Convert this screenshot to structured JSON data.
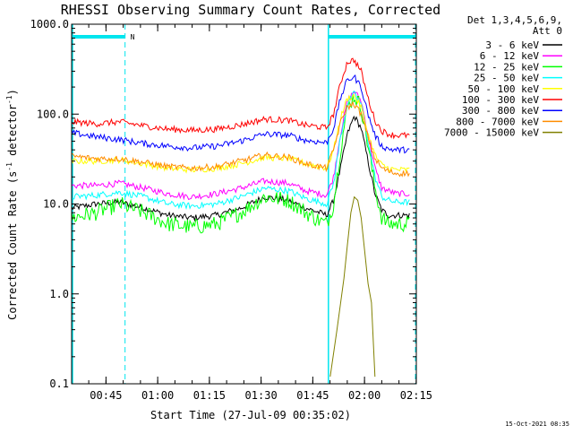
{
  "chart_data": {
    "type": "line",
    "title": "RHESSI Observing Summary Count Rates, Corrected",
    "xlabel": "Start Time (27-Jul-09 00:35:02)",
    "ylabel_main": "Corrected Count Rate (s",
    "ylabel_sup1": "-1",
    "ylabel_mid": " detector",
    "ylabel_sup2": "-1",
    "ylabel_end": ")",
    "yscale": "log",
    "ylim": [
      0.1,
      1000.0
    ],
    "xlim_minutes": [
      0,
      100
    ],
    "x_tick_labels": [
      "00:45",
      "01:00",
      "01:15",
      "01:30",
      "01:45",
      "02:00",
      "02:15"
    ],
    "y_tick_labels": [
      "0.1",
      "1.0",
      "10.0",
      "100.0",
      "1000.0"
    ],
    "legend_header": [
      "Det 1,3,4,5,6,9,",
      "Att 0"
    ],
    "timestamp": "15-Oct-2021 08:35",
    "night_label": "N",
    "night_intervals_minutes": [
      [
        0,
        15.5
      ],
      [
        74.5,
        100
      ]
    ],
    "series": [
      {
        "name": "3 - 6 keV",
        "color": "#000000",
        "x": [
          0,
          7,
          14,
          21,
          28,
          35,
          42,
          49,
          56,
          63,
          68,
          72,
          74,
          76,
          78,
          80,
          82,
          84,
          86,
          88,
          90,
          92,
          94,
          96,
          98
        ],
        "values": [
          9,
          10,
          10.5,
          9,
          7.5,
          7,
          7.5,
          9,
          12,
          11,
          9,
          8,
          7.5,
          11,
          25,
          60,
          95,
          70,
          30,
          13,
          8.5,
          7.5,
          7.5,
          7.5,
          7.5
        ]
      },
      {
        "name": "6 - 12 keV",
        "color": "#ff00ff",
        "x": [
          0,
          7,
          14,
          21,
          28,
          35,
          42,
          49,
          56,
          63,
          68,
          72,
          74,
          76,
          78,
          80,
          82,
          84,
          86,
          88,
          90,
          92,
          94,
          96,
          98
        ],
        "values": [
          16,
          16,
          17,
          15,
          13,
          12,
          13,
          15,
          18,
          17,
          14,
          13,
          12.5,
          20,
          60,
          140,
          180,
          140,
          60,
          25,
          15,
          14,
          13,
          13,
          13
        ]
      },
      {
        "name": "12 - 25 keV",
        "color": "#00ff00",
        "x": [
          0,
          7,
          14,
          21,
          28,
          35,
          42,
          49,
          56,
          63,
          68,
          72,
          74,
          76,
          78,
          80,
          82,
          84,
          86,
          88,
          90,
          92,
          94,
          96,
          98
        ],
        "values": [
          7,
          8,
          10,
          8,
          6,
          5.5,
          6,
          8,
          12,
          11,
          8,
          6.5,
          6,
          10,
          40,
          120,
          160,
          120,
          45,
          15,
          7,
          6,
          6,
          6,
          6
        ]
      },
      {
        "name": "25 - 50 keV",
        "color": "#00ffff",
        "x": [
          0,
          7,
          14,
          21,
          28,
          35,
          42,
          49,
          56,
          63,
          68,
          72,
          74,
          76,
          78,
          80,
          82,
          84,
          86,
          88,
          90,
          92,
          94,
          96,
          98
        ],
        "values": [
          12,
          12.5,
          13.5,
          12,
          10,
          9.5,
          10,
          12,
          15,
          14,
          11.5,
          10.5,
          10,
          17,
          55,
          130,
          170,
          130,
          50,
          20,
          12,
          11,
          10.5,
          10.5,
          10.5
        ]
      },
      {
        "name": "50 - 100 keV",
        "color": "#ffff00",
        "x": [
          0,
          7,
          14,
          21,
          28,
          35,
          42,
          49,
          56,
          63,
          68,
          72,
          74,
          76,
          78,
          80,
          82,
          84,
          86,
          88,
          90,
          92,
          94,
          96,
          98
        ],
        "values": [
          30,
          30,
          31,
          28,
          25,
          24,
          25,
          28,
          33,
          32,
          28,
          26,
          25,
          40,
          90,
          150,
          160,
          120,
          60,
          35,
          27,
          25,
          24,
          24,
          24
        ]
      },
      {
        "name": "100 - 300 keV",
        "color": "#ff0000",
        "x": [
          0,
          7,
          14,
          21,
          28,
          35,
          42,
          49,
          56,
          63,
          68,
          72,
          74,
          76,
          78,
          80,
          82,
          84,
          86,
          88,
          90,
          92,
          94,
          96,
          98
        ],
        "values": [
          82,
          78,
          82,
          74,
          68,
          66,
          68,
          76,
          88,
          85,
          75,
          72,
          70,
          100,
          220,
          380,
          400,
          300,
          150,
          85,
          65,
          60,
          58,
          58,
          58
        ]
      },
      {
        "name": "300 - 800 keV",
        "color": "#0000ff",
        "x": [
          0,
          7,
          14,
          21,
          28,
          35,
          42,
          49,
          56,
          63,
          68,
          72,
          74,
          76,
          78,
          80,
          82,
          84,
          86,
          88,
          90,
          92,
          94,
          96,
          98
        ],
        "values": [
          62,
          56,
          52,
          47,
          44,
          42,
          44,
          50,
          60,
          58,
          51,
          49,
          48,
          70,
          150,
          240,
          260,
          200,
          100,
          58,
          44,
          41,
          40,
          40,
          40
        ]
      },
      {
        "name": "800 - 7000 keV",
        "color": "#ff8c00",
        "x": [
          0,
          7,
          14,
          21,
          28,
          35,
          42,
          49,
          56,
          63,
          68,
          72,
          74,
          76,
          78,
          80,
          82,
          84,
          86,
          88,
          90,
          92,
          94,
          96,
          98
        ],
        "values": [
          34,
          32,
          32,
          29,
          26,
          25,
          26,
          30,
          35,
          33,
          28,
          26,
          25,
          40,
          80,
          120,
          130,
          100,
          55,
          32,
          25,
          23,
          22,
          22,
          22
        ]
      },
      {
        "name": "7000 - 15000 keV",
        "color": "#808000",
        "x": [
          75,
          77,
          79,
          80,
          81,
          82,
          83,
          84,
          85,
          86,
          87,
          88
        ],
        "values": [
          0.12,
          0.4,
          1.5,
          3.5,
          8,
          12,
          11,
          7,
          3,
          1.3,
          0.8,
          0.12
        ]
      }
    ]
  }
}
